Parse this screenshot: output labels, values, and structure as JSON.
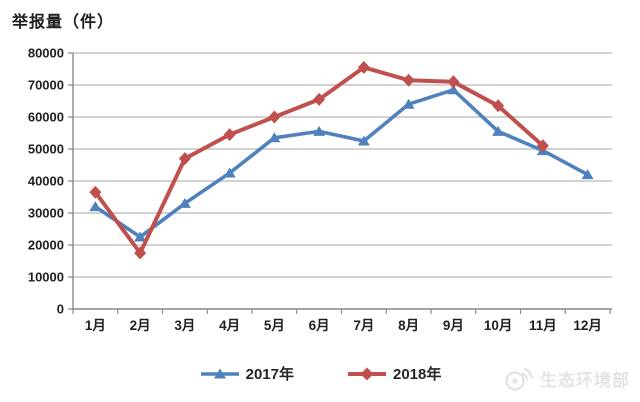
{
  "title": "举报量（件）",
  "watermark": {
    "icon": "weibo-icon",
    "text": "生态环境部"
  },
  "legend": [
    {
      "label": "2017年",
      "color": "#4F81BD",
      "marker": "triangle"
    },
    {
      "label": "2018年",
      "color": "#C0504D",
      "marker": "diamond"
    }
  ],
  "chart_data": {
    "type": "line",
    "title": "举报量（件）",
    "categories": [
      "1月",
      "2月",
      "3月",
      "4月",
      "5月",
      "6月",
      "7月",
      "8月",
      "9月",
      "10月",
      "11月",
      "12月"
    ],
    "series": [
      {
        "name": "2017年",
        "color": "#4F81BD",
        "marker": "triangle",
        "values": [
          32000,
          22500,
          33000,
          42500,
          53500,
          55500,
          52500,
          64000,
          68500,
          55500,
          49500,
          42000
        ]
      },
      {
        "name": "2018年",
        "color": "#C0504D",
        "marker": "diamond",
        "values": [
          36500,
          17500,
          47000,
          54500,
          60000,
          65500,
          75500,
          71500,
          71000,
          63500,
          51000
        ]
      }
    ],
    "ylim": [
      0,
      80000
    ],
    "ytick_interval": 10000,
    "xlabel": "",
    "ylabel": "",
    "grid": "horizontal",
    "legend_position": "bottom",
    "colors": {
      "gridline": "#b7b7b7",
      "axis": "#8c8c8c",
      "tick_label": "#1f1f1f"
    }
  }
}
